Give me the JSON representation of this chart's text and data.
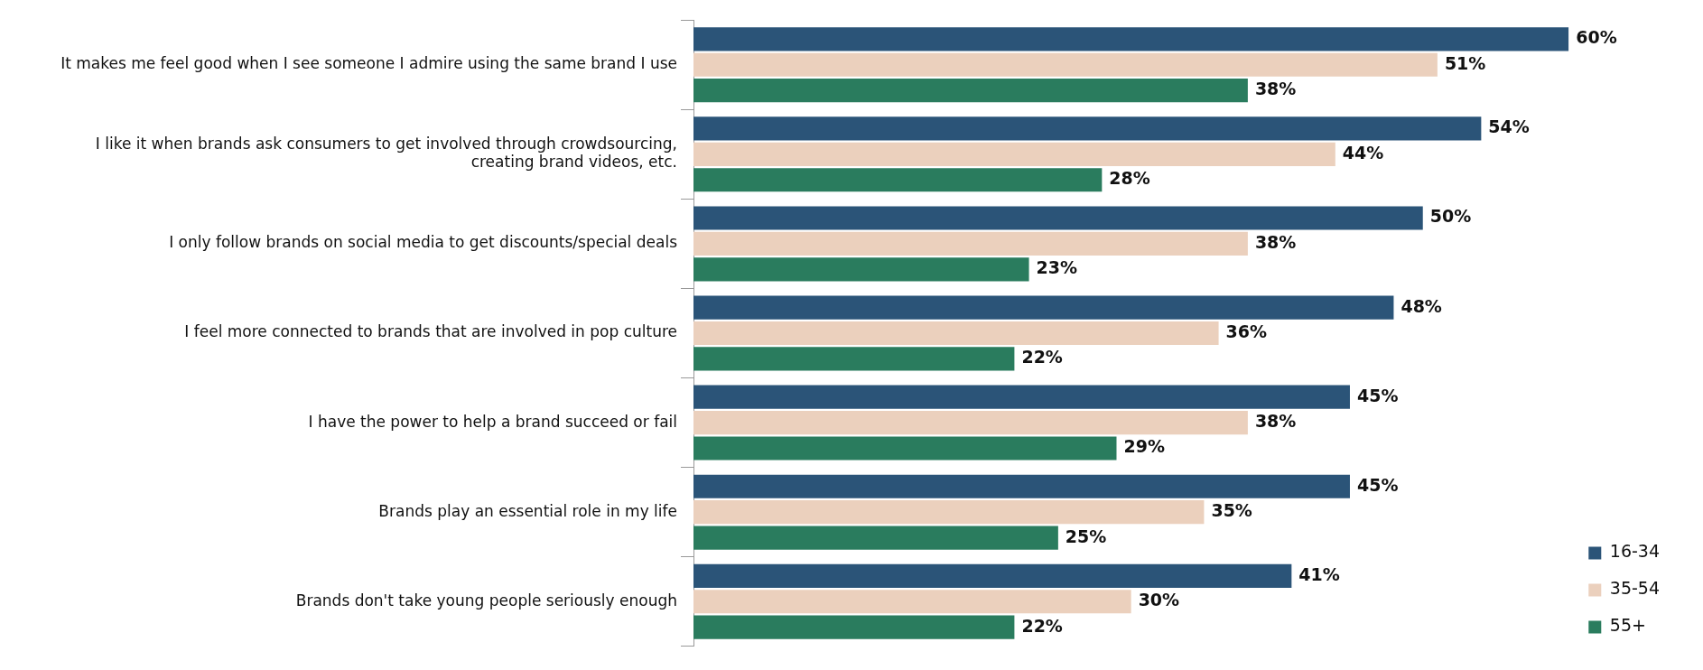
{
  "chart_data": {
    "type": "bar",
    "orientation": "horizontal",
    "categories": [
      "It makes me feel good when I see someone I admire using the same brand I use",
      "I like it when brands ask consumers to get involved through crowdsourcing, creating brand videos, etc.",
      "I only follow brands on social media to get discounts/special deals",
      "I feel more connected to brands that are involved in pop culture",
      "I have the power to help a brand succeed or fail",
      "Brands play an essential role in my life",
      "Brands don't take young people seriously enough"
    ],
    "series": [
      {
        "name": "16-34",
        "color": "#2b5478",
        "values": [
          60,
          54,
          50,
          48,
          45,
          45,
          41
        ],
        "value_labels": [
          "60%",
          "54%",
          "50%",
          "48%",
          "45%",
          "45%",
          "41%"
        ]
      },
      {
        "name": "35-54",
        "color": "#ebd0bd",
        "values": [
          51,
          44,
          38,
          36,
          38,
          35,
          30
        ],
        "value_labels": [
          "51%",
          "44%",
          "38%",
          "36%",
          "38%",
          "35%",
          "30%"
        ]
      },
      {
        "name": "55+",
        "color": "#2a7c5e",
        "values": [
          38,
          28,
          23,
          22,
          29,
          25,
          22
        ],
        "value_labels": [
          "38%",
          "28%",
          "23%",
          "22%",
          "29%",
          "25%",
          "22%"
        ]
      }
    ],
    "legend": "bottom right"
  }
}
